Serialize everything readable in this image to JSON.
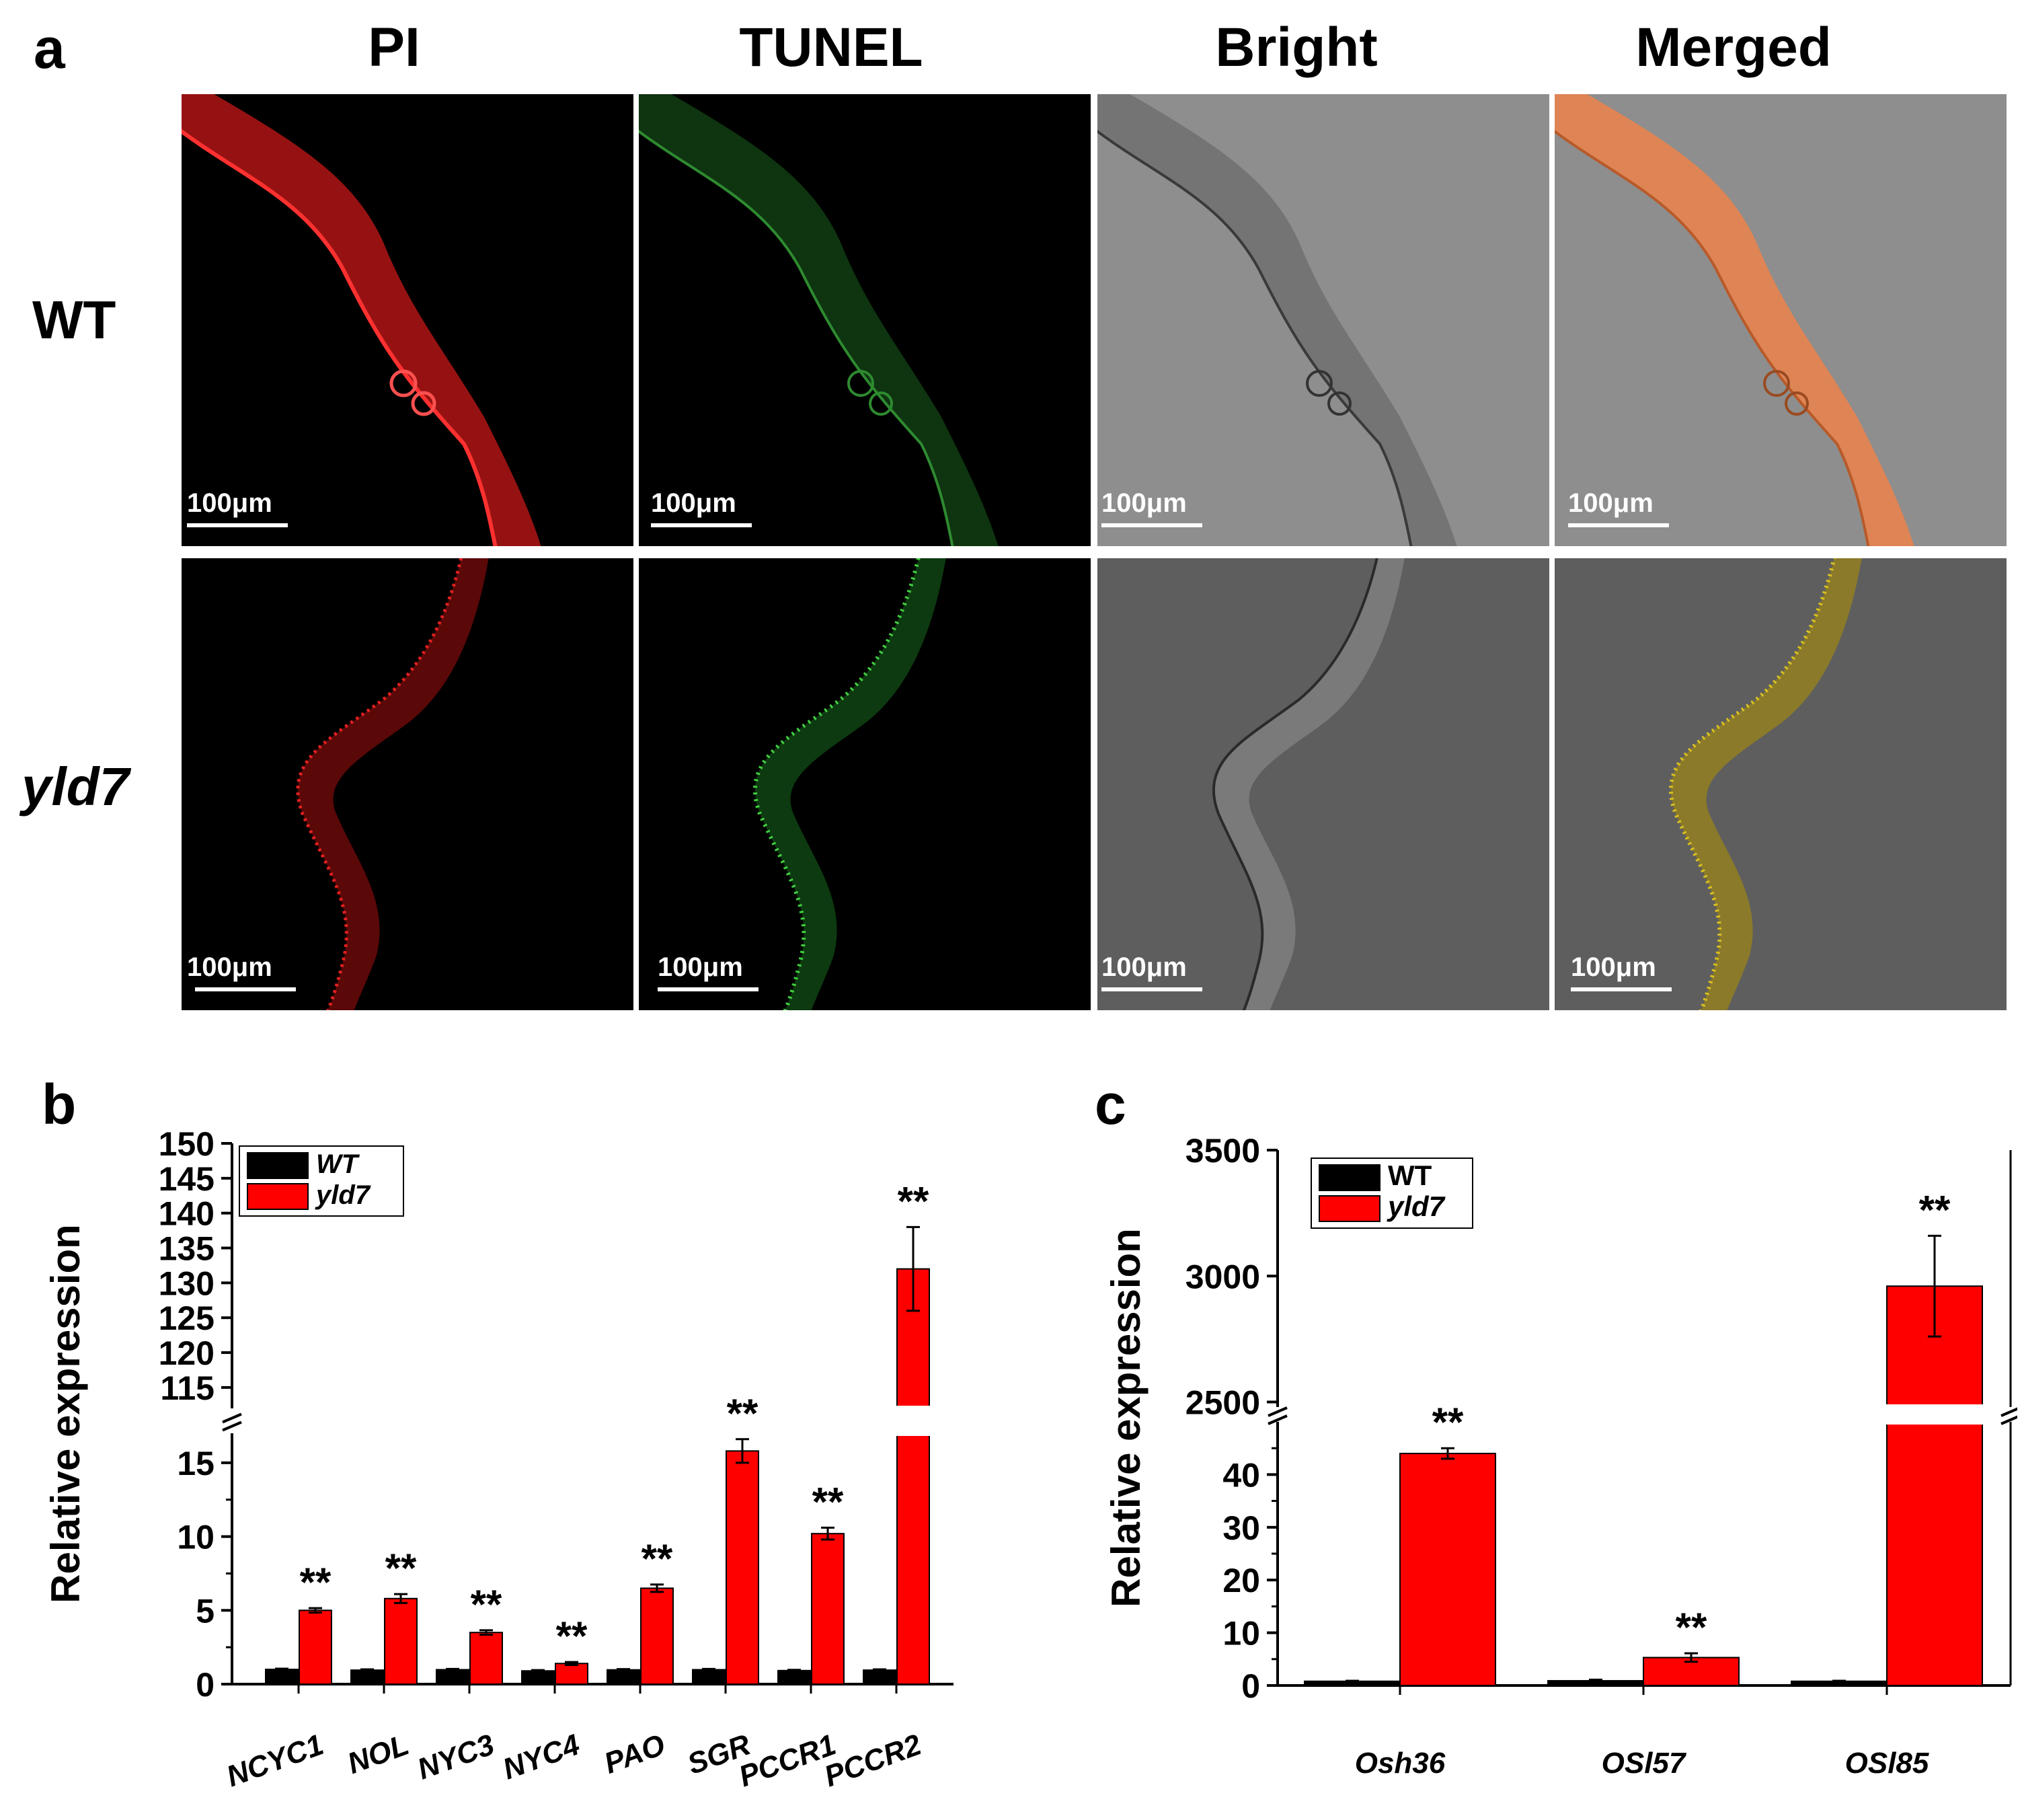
{
  "panels": {
    "a": {
      "letter": "a",
      "columns": [
        "PI",
        "TUNEL",
        "Bright",
        "Merged"
      ],
      "rows": [
        "WT",
        "yld7"
      ],
      "scale_label": "100μm",
      "channel_colors": {
        "PI": "#e01010",
        "TUNEL": "#20a020",
        "Bright": "#8c8c8c",
        "Merged": "#e8834e"
      }
    },
    "b": {
      "letter": "b"
    },
    "c": {
      "letter": "c"
    }
  },
  "chart_data": [
    {
      "id": "b",
      "type": "bar",
      "ylabel": "Relative expression",
      "categories": [
        "NCYC1",
        "NOL",
        "NYC3",
        "NYC4",
        "PAO",
        "SGR",
        "PCCR1",
        "PCCR2"
      ],
      "series": [
        {
          "name": "WT",
          "values": [
            1.0,
            0.95,
            0.98,
            0.9,
            0.97,
            0.98,
            0.92,
            0.95
          ],
          "errors": [
            0.05,
            0.05,
            0.05,
            0.05,
            0.05,
            0.05,
            0.05,
            0.05
          ],
          "color": "#000000"
        },
        {
          "name": "yld7",
          "values": [
            5.0,
            5.8,
            3.5,
            1.4,
            6.5,
            15.8,
            10.2,
            132
          ],
          "errors": [
            0.15,
            0.3,
            0.15,
            0.1,
            0.25,
            0.8,
            0.4,
            6.0
          ],
          "color": "#ff0000"
        }
      ],
      "significance": [
        "**",
        "**",
        "**",
        "**",
        "**",
        "**",
        "**",
        "**"
      ],
      "broken_axis": {
        "lower": [
          0,
          17
        ],
        "upper": [
          112,
          150
        ]
      },
      "lower_ticks": [
        0,
        5,
        10,
        15
      ],
      "upper_ticks": [
        115,
        120,
        125,
        130,
        135,
        140,
        145,
        150
      ],
      "legend": {
        "placement": "top-left",
        "items": [
          "WT",
          "yld7"
        ],
        "italic": true
      }
    },
    {
      "id": "c",
      "type": "bar",
      "ylabel": "Relative expression",
      "categories": [
        "Osh36",
        "OSl57",
        "OSl85"
      ],
      "series": [
        {
          "name": "WT",
          "values": [
            0.8,
            0.9,
            0.8
          ],
          "errors": [
            0.1,
            0.2,
            0.1
          ],
          "color": "#000000"
        },
        {
          "name": "yld7",
          "values": [
            44,
            5.3,
            2960
          ],
          "errors": [
            1.0,
            0.8,
            200
          ],
          "color": "#ff0000"
        }
      ],
      "significance": [
        "**",
        "**",
        "**"
      ],
      "broken_axis": {
        "lower": [
          0,
          50
        ],
        "upper": [
          2480,
          3500
        ]
      },
      "lower_ticks": [
        0,
        10,
        20,
        30,
        40
      ],
      "upper_ticks": [
        2500,
        3000,
        3500
      ],
      "legend": {
        "placement": "top-left",
        "items": [
          "WT",
          "yld7"
        ],
        "italic_only": "yld7"
      }
    }
  ]
}
